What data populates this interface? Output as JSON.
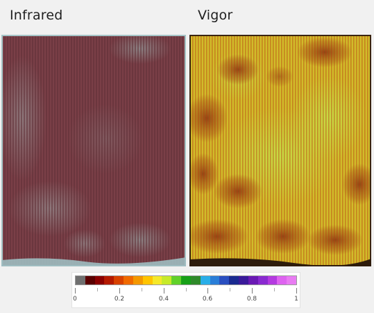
{
  "panels": {
    "left": {
      "title": "Infrared",
      "icon": "infrared-field-image",
      "colors": {
        "base": "#7a3f47",
        "haze": "#8fb2b0",
        "edge": "#9fbcc0"
      }
    },
    "right": {
      "title": "Vigor",
      "icon": "vigor-field-image",
      "colors": {
        "base": "#d1bc2a",
        "light": "#c9dc3c",
        "dark": "#7f3f10",
        "edge": "#3a2410"
      }
    }
  },
  "colorbar": {
    "colors": [
      "#6f6f6f",
      "#5a0000",
      "#8a0000",
      "#b41a00",
      "#d84200",
      "#f06a00",
      "#f49800",
      "#ffc400",
      "#f5e82a",
      "#c7ea2a",
      "#62d12a",
      "#18a018",
      "#2f8a2a",
      "#29aee8",
      "#2a7ed8",
      "#2a4fc0",
      "#1a2a90",
      "#3a1a9a",
      "#6a1ab4",
      "#8a2ad0",
      "#b43ae0",
      "#de63f0",
      "#e87cf2"
    ],
    "tick_labels": [
      {
        "value": 0,
        "label": "0"
      },
      {
        "value": 0.2,
        "label": "0.2"
      },
      {
        "value": 0.4,
        "label": "0.4"
      },
      {
        "value": 0.6,
        "label": "0.6"
      },
      {
        "value": 0.8,
        "label": "0.8"
      },
      {
        "value": 1,
        "label": "1"
      }
    ],
    "minor_ticks": [
      0.1,
      0.3,
      0.5,
      0.7,
      0.9
    ]
  }
}
